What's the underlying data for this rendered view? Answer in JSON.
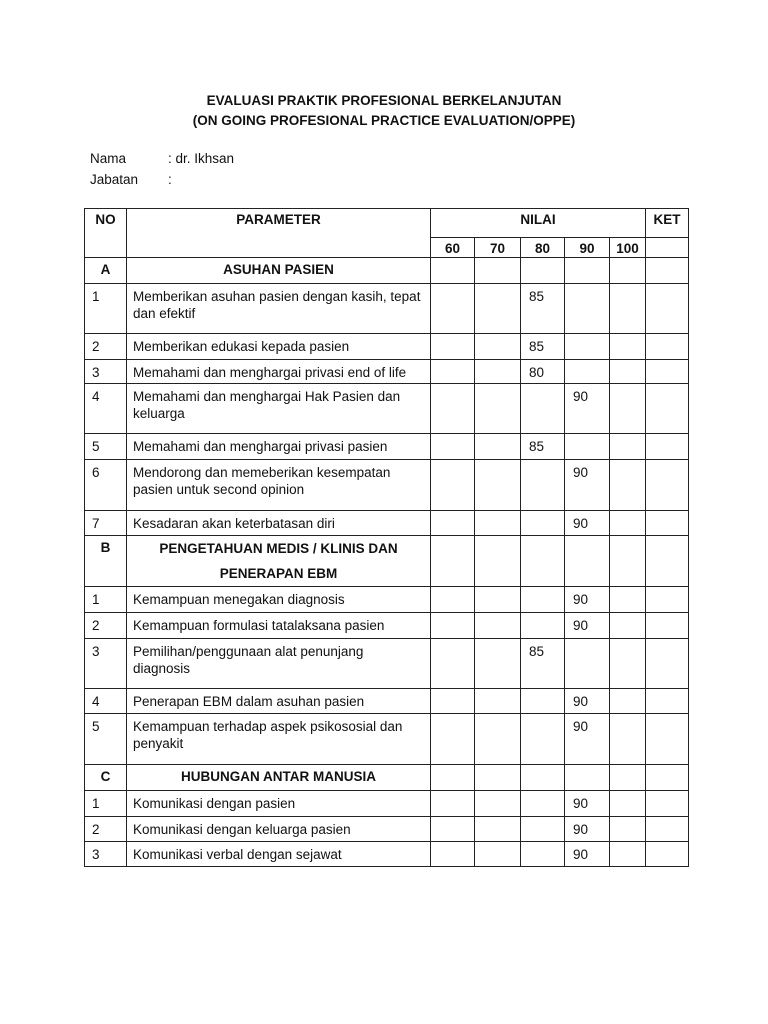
{
  "document": {
    "title_line1": "EVALUASI PRAKTIK PROFESIONAL BERKELANJUTAN",
    "title_line2": "(ON GOING PROFESIONAL PRACTICE EVALUATION/OPPE)",
    "fields": [
      {
        "label": "Nama",
        "value": ": dr. Ikhsan"
      },
      {
        "label": "Jabatan",
        "value": ":"
      }
    ]
  },
  "table": {
    "headers": {
      "no": "NO",
      "parameter": "PARAMETER",
      "nilai": "NILAI",
      "ket": "KET",
      "scores": [
        "60",
        "70",
        "80",
        "90",
        "100"
      ]
    },
    "sections": [
      {
        "code": "A",
        "title": "ASUHAN PASIEN",
        "rows": [
          {
            "no": "1",
            "parameter": "Memberikan asuhan pasien dengan kasih, tepat dan efektif",
            "score_column": "80",
            "value": "85"
          },
          {
            "no": "2",
            "parameter": "Memberikan edukasi kepada pasien",
            "score_column": "80",
            "value": "85"
          },
          {
            "no": "3",
            "parameter": "Memahami dan menghargai privasi end of life",
            "score_column": "80",
            "value": "80"
          },
          {
            "no": "4",
            "parameter": "Memahami dan menghargai Hak Pasien dan keluarga",
            "score_column": "90",
            "value": "90"
          },
          {
            "no": "5",
            "parameter": "Memahami dan menghargai privasi pasien",
            "score_column": "80",
            "value": "85"
          },
          {
            "no": "6",
            "parameter": "Mendorong dan memeberikan kesempatan pasien untuk second opinion",
            "score_column": "90",
            "value": "90"
          },
          {
            "no": "7",
            "parameter": "Kesadaran akan keterbatasan diri",
            "score_column": "90",
            "value": "90"
          }
        ]
      },
      {
        "code": "B",
        "title": "PENGETAHUAN MEDIS / KLINIS DAN PENERAPAN EBM",
        "rows": [
          {
            "no": "1",
            "parameter": "Kemampuan menegakan diagnosis",
            "score_column": "90",
            "value": "90"
          },
          {
            "no": "2",
            "parameter": "Kemampuan formulasi tatalaksana pasien",
            "score_column": "90",
            "value": "90"
          },
          {
            "no": "3",
            "parameter": "Pemilihan/penggunaan alat penunjang diagnosis",
            "score_column": "80",
            "value": "85"
          },
          {
            "no": "4",
            "parameter": "Penerapan EBM dalam asuhan pasien",
            "score_column": "90",
            "value": "90"
          },
          {
            "no": "5",
            "parameter": "Kemampuan terhadap aspek psikososial dan penyakit",
            "score_column": "90",
            "value": "90"
          }
        ]
      },
      {
        "code": "C",
        "title": "HUBUNGAN ANTAR MANUSIA",
        "rows": [
          {
            "no": "1",
            "parameter": "Komunikasi dengan pasien",
            "score_column": "90",
            "value": "90"
          },
          {
            "no": "2",
            "parameter": "Komunikasi dengan keluarga pasien",
            "score_column": "90",
            "value": "90"
          },
          {
            "no": "3",
            "parameter": "Komunikasi verbal dengan sejawat",
            "score_column": "90",
            "value": "90"
          }
        ]
      }
    ]
  }
}
